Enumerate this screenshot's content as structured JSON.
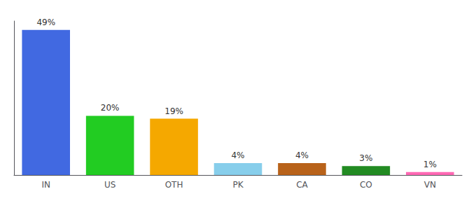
{
  "chart_data": {
    "type": "bar",
    "categories": [
      "IN",
      "US",
      "OTH",
      "PK",
      "CA",
      "CO",
      "VN"
    ],
    "values": [
      49,
      20,
      19,
      4,
      4,
      3,
      1
    ],
    "value_labels": [
      "49%",
      "20%",
      "19%",
      "4%",
      "4%",
      "3%",
      "1%"
    ],
    "data_labels": true,
    "colors": [
      "#4169e1",
      "#22cc22",
      "#f5a800",
      "#87ceeb",
      "#b8621a",
      "#228b22",
      "#ff69b4"
    ],
    "ylim": [
      0,
      52
    ],
    "grid": false,
    "tick_labels": "x"
  }
}
